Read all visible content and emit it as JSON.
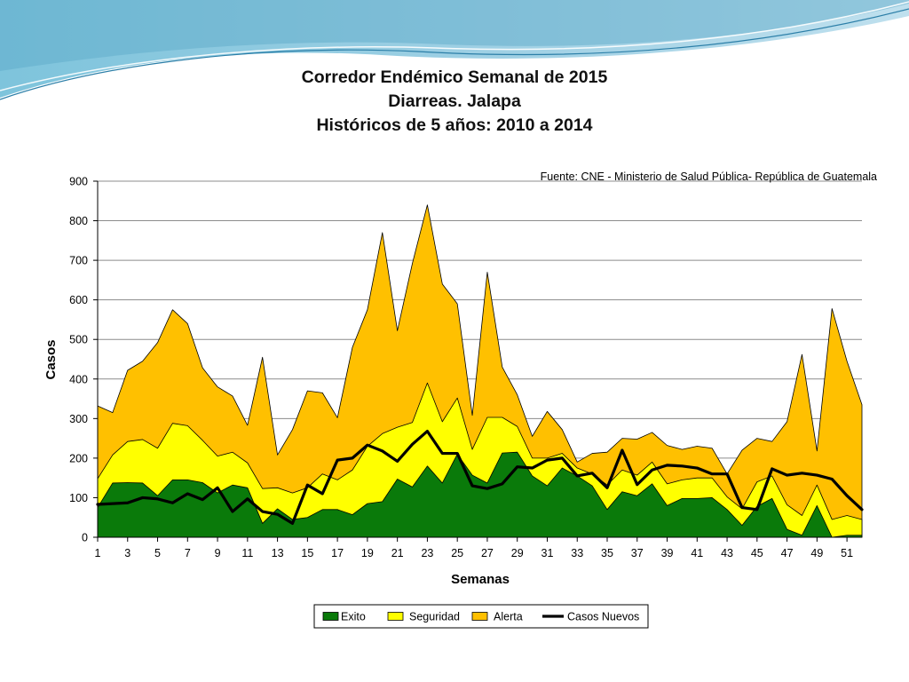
{
  "chart_data": {
    "type": "area",
    "title": [
      "Corredor Endémico Semanal de 2015",
      "Diarreas.  Jalapa",
      "Históricos de 5 años: 2010 a 2014"
    ],
    "annotation": "Fuente: CNE - Ministerio de Salud Pública- República de Guatemala",
    "xlabel": "Semanas",
    "ylabel": "Casos",
    "x": [
      1,
      2,
      3,
      4,
      5,
      6,
      7,
      8,
      9,
      10,
      11,
      12,
      13,
      14,
      15,
      16,
      17,
      18,
      19,
      20,
      21,
      22,
      23,
      24,
      25,
      26,
      27,
      28,
      29,
      30,
      31,
      32,
      33,
      34,
      35,
      36,
      37,
      38,
      39,
      40,
      41,
      42,
      43,
      44,
      45,
      46,
      47,
      48,
      49,
      50,
      51,
      52
    ],
    "xlim": [
      1,
      52
    ],
    "ylim": [
      0,
      900
    ],
    "x_ticks": [
      1,
      3,
      5,
      7,
      9,
      11,
      13,
      15,
      17,
      19,
      21,
      23,
      25,
      27,
      29,
      31,
      33,
      35,
      37,
      39,
      41,
      43,
      45,
      47,
      49,
      51
    ],
    "y_ticks": [
      0,
      100,
      200,
      300,
      400,
      500,
      600,
      700,
      800,
      900
    ],
    "grid": "horizontal",
    "legend_position": "bottom",
    "series": [
      {
        "name": "Exito",
        "kind": "area",
        "color": "#0a7a0a",
        "values": [
          75,
          137,
          138,
          137,
          105,
          145,
          145,
          138,
          112,
          132,
          125,
          35,
          72,
          45,
          50,
          70,
          70,
          57,
          85,
          90,
          147,
          127,
          180,
          137,
          210,
          157,
          137,
          213,
          215,
          155,
          130,
          175,
          155,
          130,
          70,
          115,
          105,
          135,
          80,
          98,
          98,
          100,
          70,
          30,
          78,
          98,
          20,
          5,
          80,
          0,
          5,
          5
        ]
      },
      {
        "name": "Seguridad",
        "kind": "area",
        "color": "#ffff00",
        "values": [
          148,
          208,
          242,
          247,
          225,
          288,
          282,
          245,
          205,
          215,
          188,
          123,
          125,
          112,
          125,
          160,
          145,
          170,
          230,
          262,
          278,
          290,
          390,
          292,
          352,
          222,
          303,
          303,
          280,
          200,
          200,
          212,
          175,
          160,
          132,
          170,
          157,
          190,
          135,
          145,
          150,
          150,
          102,
          72,
          140,
          155,
          82,
          55,
          132,
          45,
          55,
          45
        ]
      },
      {
        "name": "Alerta",
        "kind": "area",
        "color": "#ffc000",
        "values": [
          332,
          315,
          422,
          445,
          492,
          575,
          540,
          428,
          380,
          357,
          283,
          455,
          208,
          272,
          370,
          365,
          302,
          480,
          575,
          770,
          522,
          692,
          840,
          640,
          590,
          308,
          670,
          430,
          360,
          255,
          318,
          272,
          190,
          212,
          215,
          250,
          248,
          265,
          232,
          222,
          230,
          225,
          160,
          220,
          250,
          242,
          292,
          462,
          218,
          578,
          445,
          335
        ]
      },
      {
        "name": "Casos Nuevos",
        "kind": "line",
        "color": "#000000",
        "values": [
          83,
          85,
          87,
          100,
          97,
          87,
          110,
          95,
          125,
          65,
          97,
          65,
          58,
          35,
          132,
          110,
          195,
          200,
          233,
          218,
          192,
          235,
          268,
          212,
          212,
          130,
          123,
          135,
          178,
          175,
          195,
          200,
          155,
          162,
          125,
          220,
          133,
          170,
          182,
          180,
          175,
          160,
          160,
          75,
          70,
          173,
          157,
          162,
          157,
          147,
          105,
          70
        ]
      }
    ]
  }
}
